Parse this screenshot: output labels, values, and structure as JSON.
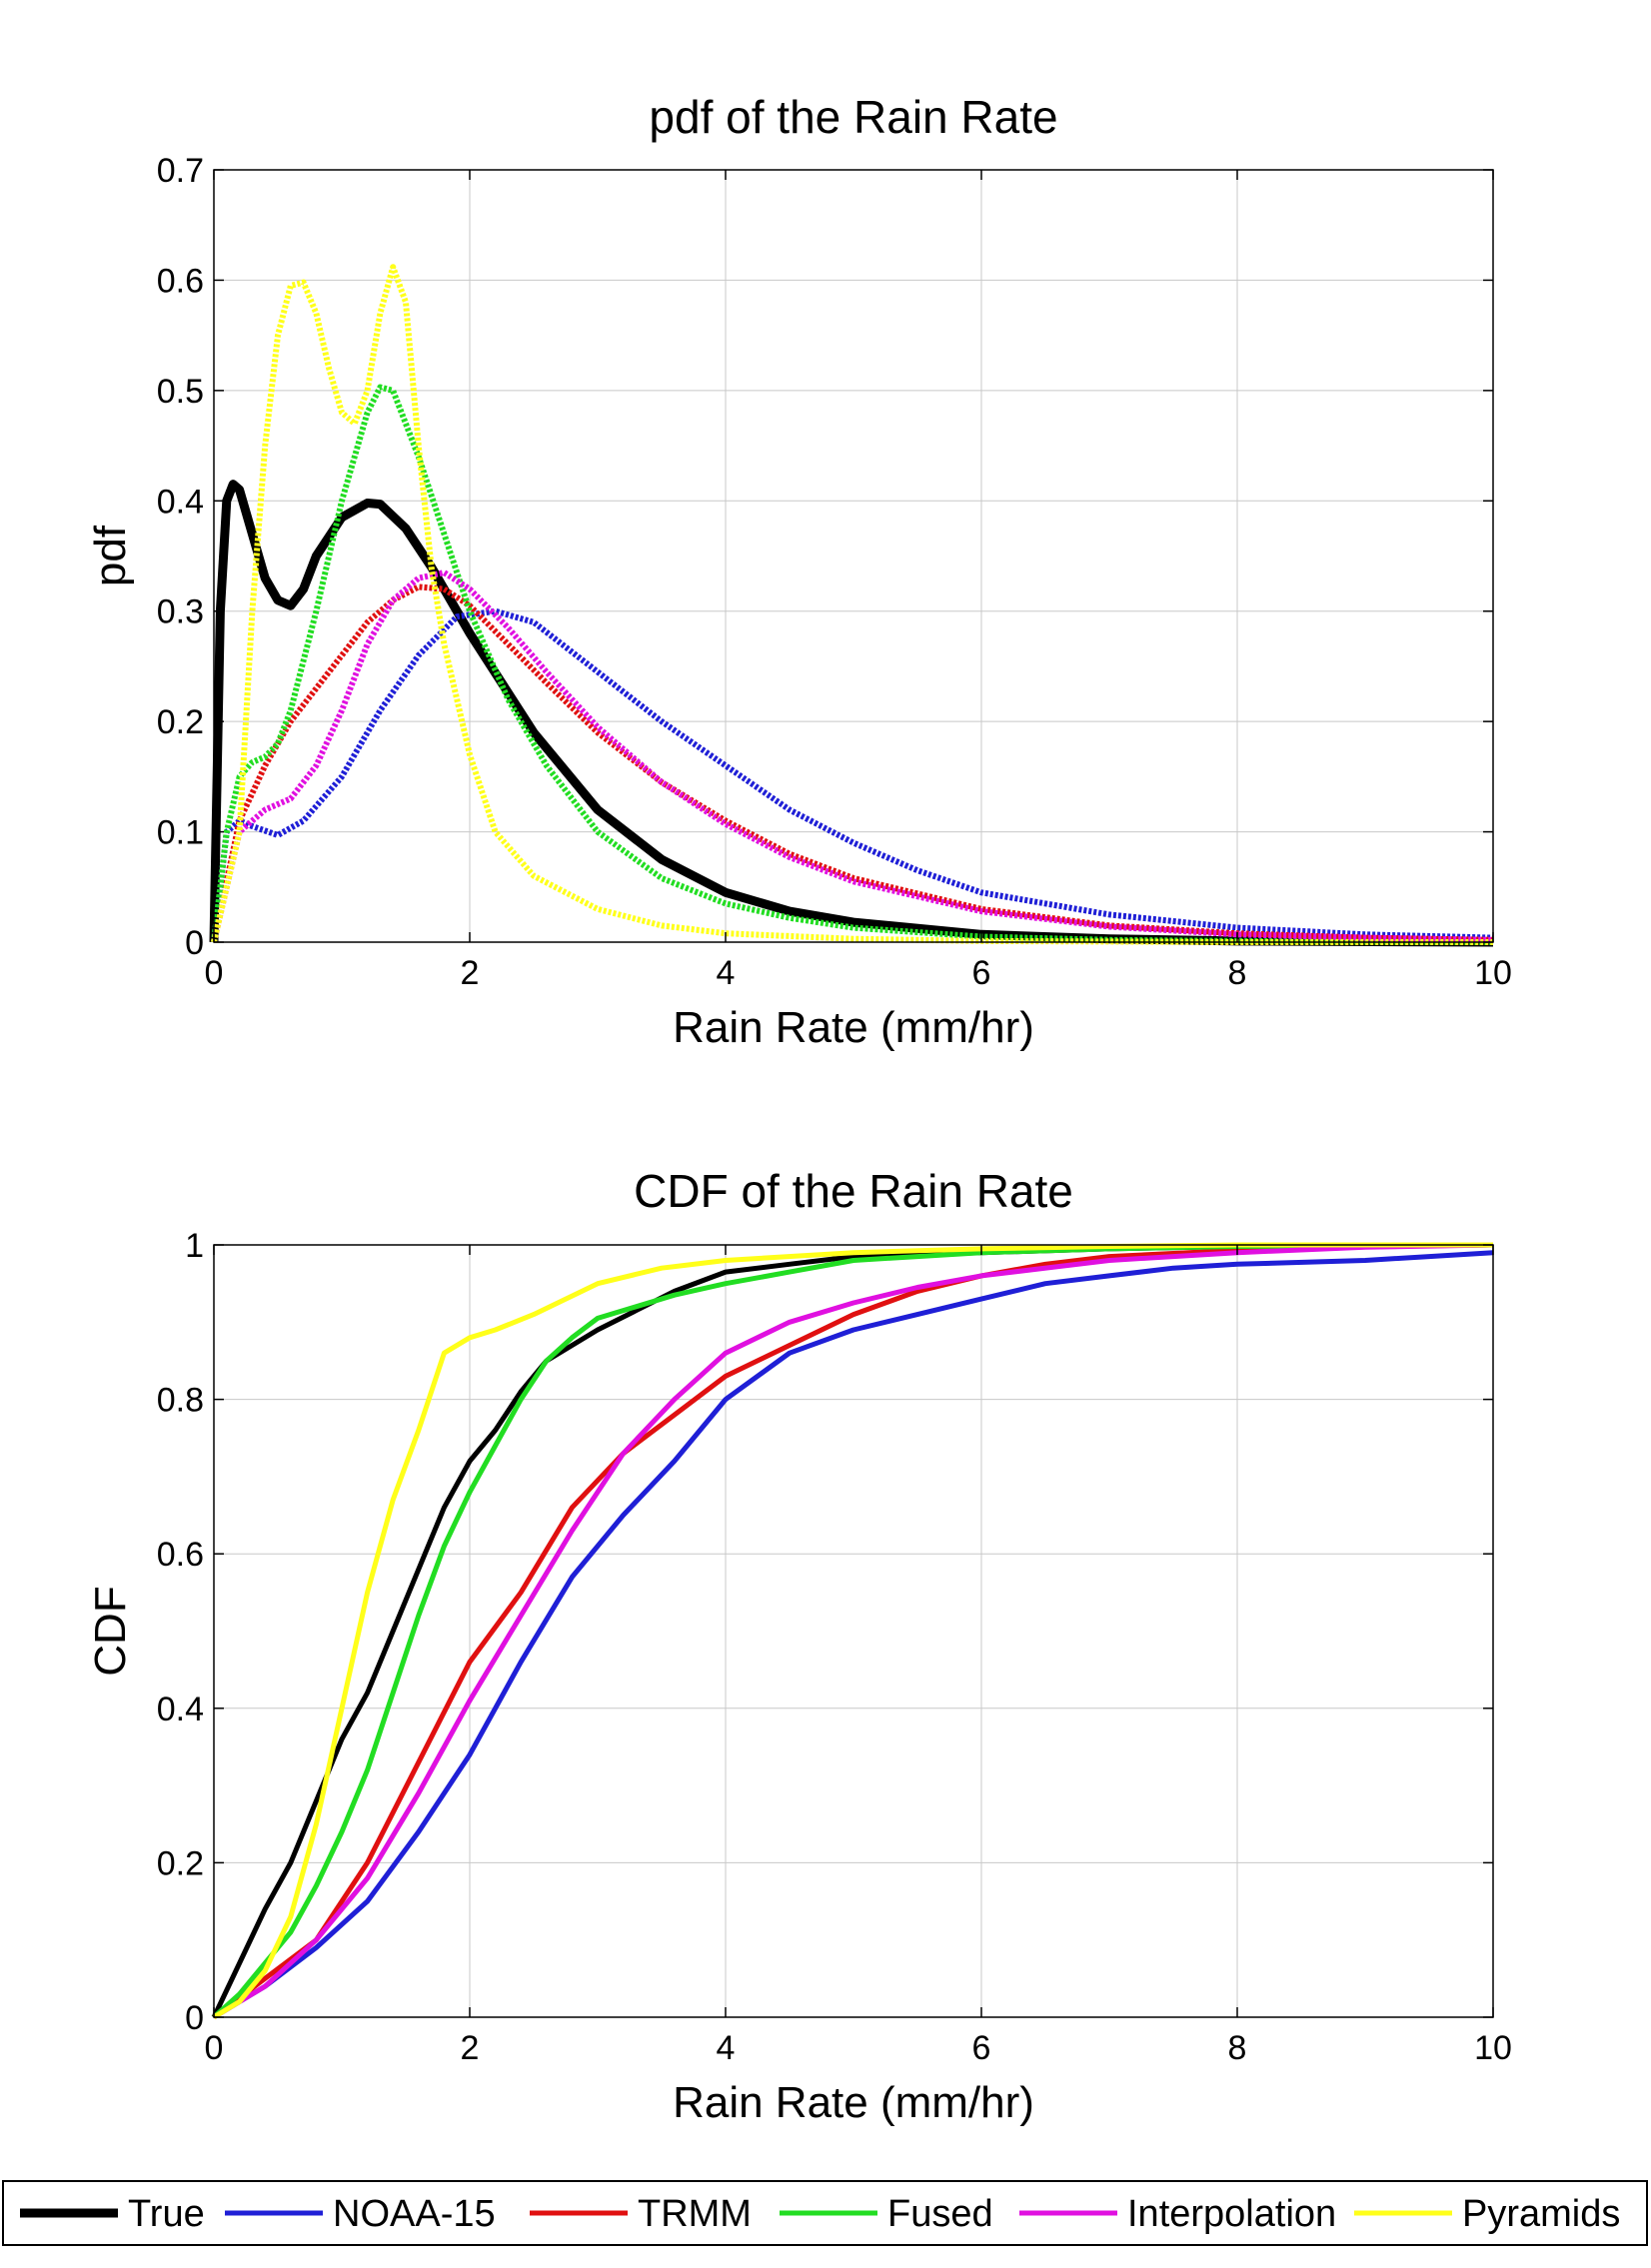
{
  "chart_data": [
    {
      "type": "line",
      "title": "pdf of the Rain Rate",
      "xlabel": "Rain Rate (mm/hr)",
      "ylabel": "pdf",
      "xlim": [
        0,
        10
      ],
      "ylim": [
        0,
        0.7
      ],
      "xticks": [
        0,
        2,
        4,
        6,
        8,
        10
      ],
      "yticks": [
        0,
        0.1,
        0.2,
        0.3,
        0.4,
        0.5,
        0.6,
        0.7
      ],
      "xtick_labels": [
        "0",
        "2",
        "4",
        "6",
        "8",
        "10"
      ],
      "ytick_labels": [
        "0",
        "0.1",
        "0.2",
        "0.3",
        "0.4",
        "0.5",
        "0.6",
        "0.7"
      ],
      "grid": true,
      "series": [
        {
          "name": "True",
          "color": "#000000",
          "style": "solid",
          "x": [
            0,
            0.05,
            0.1,
            0.15,
            0.2,
            0.3,
            0.4,
            0.5,
            0.6,
            0.7,
            0.8,
            1.0,
            1.2,
            1.3,
            1.5,
            1.7,
            2.0,
            2.5,
            3.0,
            3.5,
            4.0,
            4.5,
            5.0,
            6.0,
            7.0,
            8.0,
            10.0
          ],
          "y": [
            0.0,
            0.3,
            0.4,
            0.415,
            0.41,
            0.37,
            0.33,
            0.31,
            0.305,
            0.32,
            0.35,
            0.385,
            0.398,
            0.397,
            0.375,
            0.34,
            0.28,
            0.19,
            0.12,
            0.075,
            0.045,
            0.028,
            0.018,
            0.007,
            0.003,
            0.001,
            0.0
          ]
        },
        {
          "name": "NOAA-15",
          "color": "#1f1fd6",
          "style": "dotted",
          "x": [
            0,
            0.1,
            0.2,
            0.3,
            0.5,
            0.7,
            1.0,
            1.3,
            1.6,
            1.9,
            2.2,
            2.5,
            3.0,
            3.5,
            4.0,
            4.5,
            5.0,
            5.5,
            6.0,
            7.0,
            8.0,
            9.0,
            10.0
          ],
          "y": [
            0.0,
            0.1,
            0.11,
            0.105,
            0.097,
            0.11,
            0.15,
            0.21,
            0.26,
            0.295,
            0.3,
            0.29,
            0.245,
            0.2,
            0.16,
            0.12,
            0.09,
            0.065,
            0.045,
            0.025,
            0.013,
            0.007,
            0.004
          ]
        },
        {
          "name": "TRMM",
          "color": "#e01010",
          "style": "dotted",
          "x": [
            0,
            0.2,
            0.4,
            0.6,
            0.8,
            1.0,
            1.2,
            1.4,
            1.6,
            1.8,
            2.0,
            2.3,
            2.6,
            3.0,
            3.5,
            4.0,
            4.5,
            5.0,
            6.0,
            7.0,
            8.0,
            9.0,
            10.0
          ],
          "y": [
            0.0,
            0.11,
            0.16,
            0.2,
            0.23,
            0.26,
            0.29,
            0.31,
            0.322,
            0.32,
            0.305,
            0.27,
            0.235,
            0.19,
            0.145,
            0.11,
            0.08,
            0.058,
            0.03,
            0.015,
            0.008,
            0.004,
            0.002
          ]
        },
        {
          "name": "Fused",
          "color": "#22dd22",
          "style": "dotted",
          "x": [
            0,
            0.1,
            0.2,
            0.3,
            0.4,
            0.5,
            0.6,
            0.8,
            1.0,
            1.2,
            1.3,
            1.4,
            1.6,
            1.8,
            2.0,
            2.3,
            2.6,
            3.0,
            3.5,
            4.0,
            4.5,
            5.0,
            6.0,
            7.0,
            8.0,
            10.0
          ],
          "y": [
            0.0,
            0.1,
            0.15,
            0.163,
            0.168,
            0.18,
            0.21,
            0.3,
            0.4,
            0.48,
            0.503,
            0.5,
            0.44,
            0.37,
            0.3,
            0.22,
            0.16,
            0.1,
            0.058,
            0.035,
            0.022,
            0.013,
            0.005,
            0.002,
            0.001,
            0.0
          ]
        },
        {
          "name": "Interpolation",
          "color": "#e010e0",
          "style": "dotted",
          "x": [
            0,
            0.2,
            0.4,
            0.6,
            0.8,
            1.0,
            1.2,
            1.4,
            1.6,
            1.8,
            2.0,
            2.3,
            2.6,
            3.0,
            3.5,
            4.0,
            4.5,
            5.0,
            6.0,
            7.0,
            8.0,
            9.0,
            10.0
          ],
          "y": [
            0.0,
            0.1,
            0.12,
            0.13,
            0.16,
            0.21,
            0.27,
            0.31,
            0.33,
            0.335,
            0.32,
            0.285,
            0.245,
            0.195,
            0.145,
            0.107,
            0.077,
            0.055,
            0.028,
            0.014,
            0.007,
            0.004,
            0.002
          ]
        },
        {
          "name": "Pyramids",
          "color": "#ffff1a",
          "style": "dotted",
          "x": [
            0,
            0.2,
            0.3,
            0.4,
            0.5,
            0.6,
            0.7,
            0.8,
            0.9,
            1.0,
            1.1,
            1.2,
            1.3,
            1.4,
            1.5,
            1.6,
            1.7,
            1.8,
            2.0,
            2.2,
            2.5,
            3.0,
            3.5,
            4.0,
            5.0,
            6.0,
            7.0,
            8.0,
            10.0
          ],
          "y": [
            0.0,
            0.1,
            0.3,
            0.45,
            0.55,
            0.595,
            0.598,
            0.57,
            0.52,
            0.48,
            0.47,
            0.5,
            0.57,
            0.612,
            0.58,
            0.45,
            0.34,
            0.27,
            0.17,
            0.1,
            0.06,
            0.03,
            0.015,
            0.008,
            0.003,
            0.001,
            0.0005,
            0.0,
            0.0
          ]
        }
      ]
    },
    {
      "type": "line",
      "title": "CDF of the Rain Rate",
      "xlabel": "Rain Rate (mm/hr)",
      "ylabel": "CDF",
      "xlim": [
        0,
        10
      ],
      "ylim": [
        0,
        1
      ],
      "xticks": [
        0,
        2,
        4,
        6,
        8,
        10
      ],
      "yticks": [
        0,
        0.2,
        0.4,
        0.6,
        0.8,
        1
      ],
      "xtick_labels": [
        "0",
        "2",
        "4",
        "6",
        "8",
        "10"
      ],
      "ytick_labels": [
        "0",
        "0.2",
        "0.4",
        "0.6",
        "0.8",
        "1"
      ],
      "grid": true,
      "series": [
        {
          "name": "True",
          "color": "#000000",
          "style": "solid",
          "x": [
            0,
            0.2,
            0.4,
            0.6,
            0.8,
            1.0,
            1.2,
            1.4,
            1.6,
            1.8,
            2.0,
            2.2,
            2.4,
            2.6,
            2.8,
            3.0,
            3.3,
            3.6,
            4.0,
            4.5,
            5.0,
            6.0,
            7.0,
            8.0,
            10.0
          ],
          "y": [
            0.0,
            0.07,
            0.14,
            0.2,
            0.28,
            0.36,
            0.42,
            0.5,
            0.58,
            0.66,
            0.72,
            0.76,
            0.81,
            0.85,
            0.87,
            0.89,
            0.915,
            0.94,
            0.965,
            0.975,
            0.985,
            0.99,
            0.995,
            0.998,
            1.0
          ]
        },
        {
          "name": "NOAA-15",
          "color": "#1f1fd6",
          "style": "solid",
          "x": [
            0,
            0.4,
            0.8,
            1.2,
            1.6,
            2.0,
            2.4,
            2.8,
            3.2,
            3.6,
            4.0,
            4.5,
            5.0,
            5.5,
            6.0,
            6.5,
            7.0,
            7.5,
            8.0,
            9.0,
            10.0
          ],
          "y": [
            0.0,
            0.04,
            0.09,
            0.15,
            0.24,
            0.34,
            0.46,
            0.57,
            0.65,
            0.72,
            0.8,
            0.86,
            0.89,
            0.91,
            0.93,
            0.95,
            0.96,
            0.97,
            0.975,
            0.98,
            0.99
          ]
        },
        {
          "name": "TRMM",
          "color": "#e01010",
          "style": "solid",
          "x": [
            0,
            0.4,
            0.8,
            1.2,
            1.6,
            2.0,
            2.4,
            2.8,
            3.2,
            3.6,
            4.0,
            4.5,
            5.0,
            5.5,
            6.0,
            6.5,
            7.0,
            8.0,
            9.0,
            10.0
          ],
          "y": [
            0.0,
            0.05,
            0.1,
            0.2,
            0.33,
            0.46,
            0.55,
            0.66,
            0.73,
            0.78,
            0.83,
            0.87,
            0.91,
            0.94,
            0.96,
            0.975,
            0.985,
            0.993,
            0.998,
            1.0
          ]
        },
        {
          "name": "Fused",
          "color": "#22dd22",
          "style": "solid",
          "x": [
            0,
            0.2,
            0.4,
            0.6,
            0.8,
            1.0,
            1.2,
            1.4,
            1.6,
            1.8,
            2.0,
            2.2,
            2.4,
            2.6,
            2.8,
            3.0,
            3.3,
            3.6,
            4.0,
            4.5,
            5.0,
            6.0,
            7.0,
            8.0,
            10.0
          ],
          "y": [
            0.0,
            0.03,
            0.07,
            0.11,
            0.17,
            0.24,
            0.32,
            0.42,
            0.52,
            0.61,
            0.68,
            0.74,
            0.8,
            0.85,
            0.88,
            0.905,
            0.92,
            0.935,
            0.95,
            0.965,
            0.98,
            0.99,
            0.995,
            0.998,
            1.0
          ]
        },
        {
          "name": "Interpolation",
          "color": "#e010e0",
          "style": "solid",
          "x": [
            0,
            0.4,
            0.8,
            1.2,
            1.6,
            2.0,
            2.4,
            2.8,
            3.2,
            3.6,
            4.0,
            4.5,
            5.0,
            5.5,
            6.0,
            7.0,
            8.0,
            9.0,
            10.0
          ],
          "y": [
            0.0,
            0.04,
            0.1,
            0.18,
            0.29,
            0.41,
            0.52,
            0.63,
            0.73,
            0.8,
            0.86,
            0.9,
            0.925,
            0.945,
            0.96,
            0.98,
            0.99,
            0.997,
            1.0
          ]
        },
        {
          "name": "Pyramids",
          "color": "#ffff1a",
          "style": "solid",
          "x": [
            0,
            0.2,
            0.4,
            0.6,
            0.8,
            1.0,
            1.2,
            1.4,
            1.6,
            1.8,
            2.0,
            2.2,
            2.5,
            3.0,
            3.5,
            4.0,
            5.0,
            6.0,
            7.0,
            8.0,
            10.0
          ],
          "y": [
            0.0,
            0.02,
            0.06,
            0.13,
            0.25,
            0.4,
            0.55,
            0.67,
            0.76,
            0.86,
            0.88,
            0.89,
            0.91,
            0.95,
            0.97,
            0.98,
            0.99,
            0.995,
            0.998,
            1.0,
            1.0
          ]
        }
      ]
    }
  ],
  "legend": {
    "placement": "bottom",
    "entries": [
      {
        "label": "True",
        "color": "#000000"
      },
      {
        "label": "NOAA-15",
        "color": "#1f1fd6"
      },
      {
        "label": "TRMM",
        "color": "#e01010"
      },
      {
        "label": "Fused",
        "color": "#22dd22"
      },
      {
        "label": "Interpolation",
        "color": "#e010e0"
      },
      {
        "label": "Pyramids",
        "color": "#ffff1a"
      }
    ]
  }
}
